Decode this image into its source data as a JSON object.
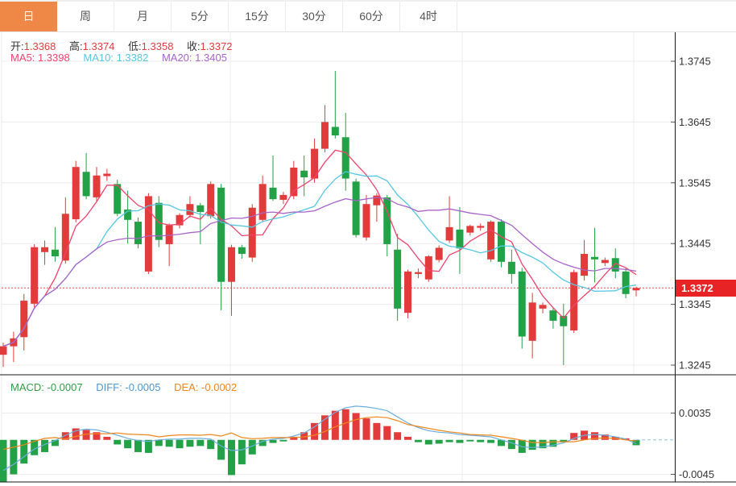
{
  "tabs": {
    "items": [
      {
        "label": "日",
        "active": true
      },
      {
        "label": "周",
        "active": false
      },
      {
        "label": "月",
        "active": false
      },
      {
        "label": "5分",
        "active": false
      },
      {
        "label": "15分",
        "active": false
      },
      {
        "label": "30分",
        "active": false
      },
      {
        "label": "60分",
        "active": false
      },
      {
        "label": "4时",
        "active": false
      }
    ]
  },
  "legend": {
    "open_label": "开:",
    "open": "1.3368",
    "high_label": "高:",
    "high": "1.3374",
    "low_label": "低:",
    "low": "1.3358",
    "close_label": "收:",
    "close": "1.3372",
    "ma5_label": "MA5:",
    "ma5": "1.3398",
    "ma10_label": "MA10:",
    "ma10": "1.3382",
    "ma20_label": "MA20:",
    "ma20": "1.3405"
  },
  "macd_legend": {
    "macd_label": "MACD:",
    "macd": "-0.0007",
    "diff_label": "DIFF:",
    "diff": "-0.0005",
    "dea_label": "DEA:",
    "dea": "-0.0002"
  },
  "price_axis": {
    "badge": "1.3372"
  },
  "colors": {
    "up": "#e23b3b",
    "down": "#22a146",
    "ma5": "#f0436c",
    "ma10": "#56c7e3",
    "ma20": "#a864c8",
    "diff": "#6aaede",
    "dea": "#f0861c",
    "badge": "#e82325",
    "tab_active": "#ef8747",
    "price_line": "#e84040",
    "grid": "#ececec",
    "axis_line": "#1a1a1a",
    "tick_text": "#333",
    "value_red": "#e23b3b",
    "macd_green": "#2f9e44",
    "diff_blue": "#4e96d2",
    "dea_orange": "#f0861c"
  },
  "chart_data": {
    "type": "candlestick",
    "title": "",
    "price_axis_ticks": [
      1.3745,
      1.3645,
      1.3545,
      1.3445,
      1.3345,
      1.3245
    ],
    "current_price": 1.3372,
    "price_range_top": 1.3794,
    "price_range_bottom": 1.323,
    "candles": [
      [
        1.3262,
        1.3282,
        1.3242,
        1.3276
      ],
      [
        1.3276,
        1.33,
        1.325,
        1.3289
      ],
      [
        1.3291,
        1.3362,
        1.3269,
        1.3351
      ],
      [
        1.3346,
        1.3444,
        1.3338,
        1.3439
      ],
      [
        1.3431,
        1.345,
        1.341,
        1.3439
      ],
      [
        1.3435,
        1.3472,
        1.3415,
        1.3424
      ],
      [
        1.3417,
        1.3521,
        1.3412,
        1.3494
      ],
      [
        1.3485,
        1.3581,
        1.348,
        1.3571
      ],
      [
        1.3563,
        1.3594,
        1.3518,
        1.3523
      ],
      [
        1.3521,
        1.3571,
        1.3515,
        1.3557
      ],
      [
        1.3556,
        1.3568,
        1.3548,
        1.356
      ],
      [
        1.3543,
        1.355,
        1.349,
        1.3494
      ],
      [
        1.3501,
        1.3532,
        1.3445,
        1.3484
      ],
      [
        1.3481,
        1.3488,
        1.3437,
        1.3444
      ],
      [
        1.3399,
        1.3528,
        1.3395,
        1.3523
      ],
      [
        1.3512,
        1.3523,
        1.3439,
        1.3451
      ],
      [
        1.3444,
        1.3478,
        1.3408,
        1.3475
      ],
      [
        1.3475,
        1.3495,
        1.347,
        1.3492
      ],
      [
        1.3492,
        1.3523,
        1.3488,
        1.351
      ],
      [
        1.3508,
        1.3512,
        1.3444,
        1.3497
      ],
      [
        1.349,
        1.3547,
        1.3486,
        1.3543
      ],
      [
        1.3537,
        1.3543,
        1.3335,
        1.3382
      ],
      [
        1.3382,
        1.3443,
        1.3326,
        1.3439
      ],
      [
        1.3439,
        1.3443,
        1.342,
        1.3428
      ],
      [
        1.3422,
        1.351,
        1.3415,
        1.3504
      ],
      [
        1.3484,
        1.3557,
        1.348,
        1.3543
      ],
      [
        1.3537,
        1.359,
        1.3515,
        1.3518
      ],
      [
        1.3517,
        1.353,
        1.351,
        1.3525
      ],
      [
        1.3523,
        1.3581,
        1.3518,
        1.357
      ],
      [
        1.3565,
        1.359,
        1.3523,
        1.3554
      ],
      [
        1.3552,
        1.3618,
        1.3545,
        1.3601
      ],
      [
        1.3601,
        1.3673,
        1.3595,
        1.3645
      ],
      [
        1.3637,
        1.3729,
        1.3618,
        1.3623
      ],
      [
        1.362,
        1.366,
        1.3532,
        1.3552
      ],
      [
        1.3547,
        1.3552,
        1.3455,
        1.3459
      ],
      [
        1.3455,
        1.3525,
        1.345,
        1.351
      ],
      [
        1.3508,
        1.3528,
        1.3481,
        1.3524
      ],
      [
        1.3521,
        1.3525,
        1.3424,
        1.3444
      ],
      [
        1.3435,
        1.3461,
        1.3318,
        1.3338
      ],
      [
        1.3331,
        1.3402,
        1.3322,
        1.3399
      ],
      [
        1.3395,
        1.3404,
        1.3388,
        1.3398
      ],
      [
        1.3386,
        1.3426,
        1.3382,
        1.3424
      ],
      [
        1.3418,
        1.3442,
        1.3414,
        1.3438
      ],
      [
        1.345,
        1.3523,
        1.3446,
        1.3472
      ],
      [
        1.3468,
        1.3505,
        1.3395,
        1.3437
      ],
      [
        1.3463,
        1.3476,
        1.3458,
        1.3474
      ],
      [
        1.3471,
        1.3478,
        1.3466,
        1.3474
      ],
      [
        1.3419,
        1.3483,
        1.3415,
        1.3481
      ],
      [
        1.3481,
        1.3485,
        1.3406,
        1.3415
      ],
      [
        1.3415,
        1.3435,
        1.3379,
        1.3395
      ],
      [
        1.3399,
        1.3405,
        1.3272,
        1.3292
      ],
      [
        1.3285,
        1.3364,
        1.3256,
        1.3348
      ],
      [
        1.3338,
        1.3348,
        1.333,
        1.3344
      ],
      [
        1.3335,
        1.334,
        1.3305,
        1.3318
      ],
      [
        1.3326,
        1.3346,
        1.3245,
        1.3309
      ],
      [
        1.3302,
        1.3402,
        1.3298,
        1.3398
      ],
      [
        1.3392,
        1.3451,
        1.3384,
        1.3428
      ],
      [
        1.3423,
        1.3471,
        1.3381,
        1.3419
      ],
      [
        1.3413,
        1.3422,
        1.3408,
        1.3418
      ],
      [
        1.3421,
        1.3437,
        1.3388,
        1.3399
      ],
      [
        1.3399,
        1.3404,
        1.3355,
        1.3362
      ],
      [
        1.3368,
        1.3374,
        1.3358,
        1.3372
      ]
    ],
    "moving_averages": {
      "periods": [
        5,
        10,
        20
      ],
      "last_values": [
        1.3398,
        1.3382,
        1.3405
      ]
    },
    "macd": {
      "axis_ticks": [
        0.0035,
        -0.0045
      ],
      "last_values": {
        "macd": -0.0007,
        "diff": -0.0005,
        "dea": -0.0002
      },
      "hist": [
        -0.0055,
        -0.0045,
        -0.0031,
        -0.002,
        -0.0016,
        -0.0008,
        0.001,
        0.0015,
        0.0013,
        0.001,
        0.0004,
        -0.0006,
        -0.0011,
        -0.0016,
        -0.0017,
        -0.0008,
        -0.0009,
        -0.0011,
        -0.0009,
        -0.0008,
        -0.0012,
        -0.0026,
        -0.0046,
        -0.0032,
        -0.0019,
        -0.0008,
        -0.0004,
        -0.0002,
        0.0004,
        0.001,
        0.0022,
        0.0032,
        0.0038,
        0.004,
        0.0035,
        0.0028,
        0.0022,
        0.0018,
        0.001,
        0.0004,
        -0.0003,
        -0.0006,
        -0.0005,
        -0.0003,
        -0.0004,
        -0.0002,
        -0.0003,
        -0.0004,
        -0.0008,
        -0.0012,
        -0.0017,
        -0.0013,
        -0.0011,
        -0.0009,
        -0.0003,
        0.0009,
        0.0012,
        0.001,
        0.0007,
        0.0004,
        0.0002,
        -0.0007
      ],
      "diff": [
        -0.004,
        -0.0032,
        -0.0022,
        -0.0012,
        -0.0006,
        -0.0001,
        0.0006,
        0.0012,
        0.0014,
        0.0013,
        0.001,
        0.0006,
        0.0002,
        -0.0001,
        -0.0002,
        0.0,
        0.0001,
        0.0001,
        0.0002,
        0.0002,
        0.0001,
        -0.0008,
        -0.0014,
        -0.0013,
        -0.0008,
        -0.0002,
        0.0001,
        0.0002,
        0.0005,
        0.0009,
        0.0017,
        0.0027,
        0.0036,
        0.0042,
        0.0044,
        0.0043,
        0.0041,
        0.0038,
        0.003,
        0.0022,
        0.0016,
        0.0012,
        0.001,
        0.0009,
        0.0007,
        0.0006,
        0.0005,
        0.0004,
        0.0,
        -0.0004,
        -0.0009,
        -0.001,
        -0.0009,
        -0.0007,
        -0.0004,
        0.0002,
        0.0006,
        0.0007,
        0.0006,
        0.0004,
        0.0001,
        -0.0005
      ]
    }
  }
}
